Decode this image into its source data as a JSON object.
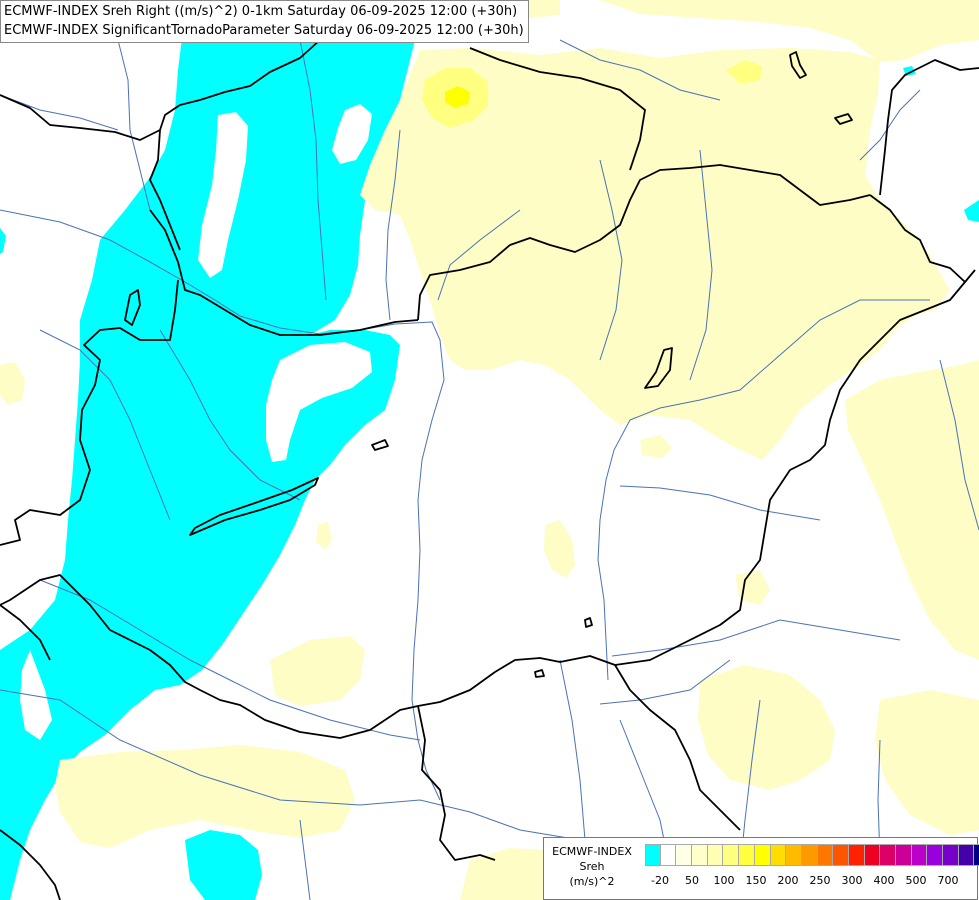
{
  "header": {
    "line1": "ECMWF-INDEX Sreh Right ((m/s)^2) 0-1km Saturday 06-09-2025 12:00 (+30h)",
    "line2": "ECMWF-INDEX SignificantTornadoParameter Saturday 06-09-2025 12:00 (+30h)"
  },
  "legend": {
    "title_line1": "ECMWF-INDEX",
    "title_line2": "Sreh",
    "title_line3": "(m/s)^2",
    "swatches": [
      "#00ffff",
      "#ffffff",
      "#ffffe6",
      "#ffffcc",
      "#ffffb3",
      "#ffff80",
      "#ffff40",
      "#ffff00",
      "#ffdd00",
      "#ffbb00",
      "#ff9900",
      "#ff7700",
      "#ff5500",
      "#ff2200",
      "#ee0022",
      "#dd0066",
      "#cc0099",
      "#bb00cc",
      "#9900dd",
      "#7700cc",
      "#4400aa",
      "#000080"
    ],
    "ticks": [
      "-20",
      "50",
      "100",
      "150",
      "200",
      "250",
      "300",
      "400",
      "500",
      "700"
    ]
  },
  "colors": {
    "cyan": "#00ffff",
    "pale_yellow": "#fdfdc5",
    "yellow_mid": "#ffff80",
    "yellow_bright": "#ffff00",
    "border": "#000000",
    "river": "#4a72b8"
  }
}
